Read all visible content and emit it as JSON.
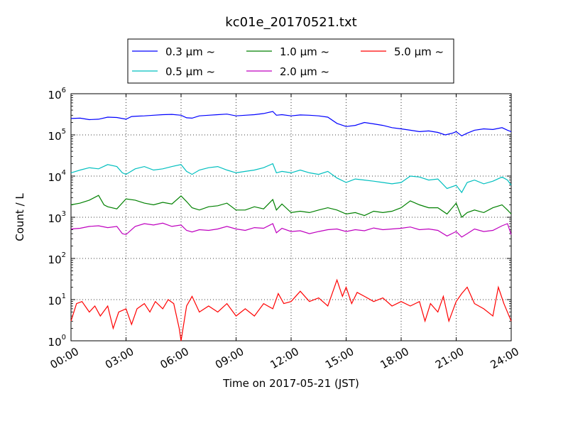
{
  "chart_data": {
    "type": "line",
    "title": "kc01e_20170521.txt",
    "xlabel": "Time on 2017-05-21 (JST)",
    "ylabel": "Count / L",
    "y_scale": "log",
    "ylim": [
      1,
      1000000
    ],
    "y_ticks": [
      {
        "base": "10",
        "exp": "0",
        "value": 1
      },
      {
        "base": "10",
        "exp": "1",
        "value": 10
      },
      {
        "base": "10",
        "exp": "2",
        "value": 100
      },
      {
        "base": "10",
        "exp": "3",
        "value": 1000
      },
      {
        "base": "10",
        "exp": "4",
        "value": 10000
      },
      {
        "base": "10",
        "exp": "5",
        "value": 100000
      },
      {
        "base": "10",
        "exp": "6",
        "value": 1000000
      }
    ],
    "x_ticks": [
      "00:00",
      "03:00",
      "06:00",
      "09:00",
      "12:00",
      "15:00",
      "18:00",
      "21:00",
      "24:00"
    ],
    "xlim": [
      "00:00",
      "24:00"
    ],
    "grid": true,
    "legend_placement": "top-center, above plot",
    "series": [
      {
        "name": "0.3 µm ~",
        "color": "#0000ff",
        "values": [
          [
            0.0,
            250000
          ],
          [
            0.5,
            255000
          ],
          [
            1.0,
            235000
          ],
          [
            1.5,
            240000
          ],
          [
            2.0,
            270000
          ],
          [
            2.5,
            265000
          ],
          [
            3.0,
            240000
          ],
          [
            3.3,
            280000
          ],
          [
            3.6,
            285000
          ],
          [
            4.0,
            290000
          ],
          [
            4.5,
            300000
          ],
          [
            5.0,
            310000
          ],
          [
            5.5,
            315000
          ],
          [
            6.0,
            300000
          ],
          [
            6.3,
            260000
          ],
          [
            6.6,
            255000
          ],
          [
            7.0,
            290000
          ],
          [
            7.5,
            300000
          ],
          [
            8.0,
            310000
          ],
          [
            8.5,
            320000
          ],
          [
            9.0,
            290000
          ],
          [
            9.5,
            300000
          ],
          [
            10.0,
            310000
          ],
          [
            10.5,
            330000
          ],
          [
            11.0,
            370000
          ],
          [
            11.2,
            300000
          ],
          [
            11.5,
            310000
          ],
          [
            12.0,
            290000
          ],
          [
            12.5,
            305000
          ],
          [
            13.0,
            300000
          ],
          [
            13.5,
            290000
          ],
          [
            14.0,
            270000
          ],
          [
            14.5,
            190000
          ],
          [
            15.0,
            160000
          ],
          [
            15.5,
            170000
          ],
          [
            16.0,
            200000
          ],
          [
            16.5,
            185000
          ],
          [
            17.0,
            170000
          ],
          [
            17.5,
            150000
          ],
          [
            18.0,
            140000
          ],
          [
            18.5,
            130000
          ],
          [
            19.0,
            120000
          ],
          [
            19.5,
            125000
          ],
          [
            20.0,
            115000
          ],
          [
            20.4,
            100000
          ],
          [
            20.8,
            110000
          ],
          [
            21.0,
            120000
          ],
          [
            21.3,
            95000
          ],
          [
            21.6,
            110000
          ],
          [
            22.0,
            130000
          ],
          [
            22.5,
            140000
          ],
          [
            23.0,
            135000
          ],
          [
            23.5,
            150000
          ],
          [
            23.8,
            130000
          ],
          [
            24.0,
            120000
          ]
        ]
      },
      {
        "name": "0.5 µm ~",
        "color": "#00bfbf",
        "values": [
          [
            0.0,
            12000
          ],
          [
            0.5,
            14000
          ],
          [
            1.0,
            16000
          ],
          [
            1.5,
            15000
          ],
          [
            2.0,
            19000
          ],
          [
            2.5,
            17000
          ],
          [
            2.8,
            12000
          ],
          [
            3.0,
            11000
          ],
          [
            3.5,
            15000
          ],
          [
            4.0,
            17000
          ],
          [
            4.5,
            14000
          ],
          [
            5.0,
            15000
          ],
          [
            5.5,
            17000
          ],
          [
            6.0,
            19000
          ],
          [
            6.3,
            13000
          ],
          [
            6.6,
            11000
          ],
          [
            7.0,
            14000
          ],
          [
            7.5,
            16000
          ],
          [
            8.0,
            17000
          ],
          [
            8.5,
            14000
          ],
          [
            9.0,
            12000
          ],
          [
            9.5,
            13000
          ],
          [
            10.0,
            14000
          ],
          [
            10.5,
            16000
          ],
          [
            11.0,
            20000
          ],
          [
            11.2,
            12000
          ],
          [
            11.5,
            13000
          ],
          [
            12.0,
            12000
          ],
          [
            12.5,
            14000
          ],
          [
            13.0,
            12000
          ],
          [
            13.5,
            11000
          ],
          [
            14.0,
            13000
          ],
          [
            14.5,
            9000
          ],
          [
            15.0,
            7000
          ],
          [
            15.5,
            8500
          ],
          [
            16.0,
            8000
          ],
          [
            16.5,
            7500
          ],
          [
            17.0,
            7000
          ],
          [
            17.5,
            6500
          ],
          [
            18.0,
            7000
          ],
          [
            18.5,
            10000
          ],
          [
            19.0,
            9500
          ],
          [
            19.5,
            8000
          ],
          [
            20.0,
            8500
          ],
          [
            20.5,
            5000
          ],
          [
            21.0,
            6000
          ],
          [
            21.3,
            4000
          ],
          [
            21.6,
            7000
          ],
          [
            22.0,
            8000
          ],
          [
            22.5,
            6500
          ],
          [
            23.0,
            7500
          ],
          [
            23.5,
            9500
          ],
          [
            23.8,
            8000
          ],
          [
            24.0,
            6000
          ]
        ]
      },
      {
        "name": "1.0 µm ~",
        "color": "#008000",
        "values": [
          [
            0.0,
            2000
          ],
          [
            0.5,
            2200
          ],
          [
            1.0,
            2600
          ],
          [
            1.5,
            3400
          ],
          [
            1.8,
            2000
          ],
          [
            2.0,
            1800
          ],
          [
            2.5,
            1600
          ],
          [
            3.0,
            2800
          ],
          [
            3.5,
            2600
          ],
          [
            4.0,
            2200
          ],
          [
            4.5,
            2000
          ],
          [
            5.0,
            2300
          ],
          [
            5.5,
            2100
          ],
          [
            6.0,
            3300
          ],
          [
            6.3,
            2400
          ],
          [
            6.6,
            1700
          ],
          [
            7.0,
            1500
          ],
          [
            7.5,
            1800
          ],
          [
            8.0,
            1900
          ],
          [
            8.5,
            2200
          ],
          [
            9.0,
            1500
          ],
          [
            9.5,
            1500
          ],
          [
            10.0,
            1800
          ],
          [
            10.5,
            1600
          ],
          [
            11.0,
            2700
          ],
          [
            11.2,
            1500
          ],
          [
            11.5,
            2100
          ],
          [
            12.0,
            1300
          ],
          [
            12.5,
            1400
          ],
          [
            13.0,
            1300
          ],
          [
            13.5,
            1500
          ],
          [
            14.0,
            1700
          ],
          [
            14.5,
            1500
          ],
          [
            15.0,
            1200
          ],
          [
            15.5,
            1300
          ],
          [
            16.0,
            1100
          ],
          [
            16.5,
            1400
          ],
          [
            17.0,
            1300
          ],
          [
            17.5,
            1400
          ],
          [
            18.0,
            1700
          ],
          [
            18.5,
            2500
          ],
          [
            19.0,
            2000
          ],
          [
            19.5,
            1700
          ],
          [
            20.0,
            1700
          ],
          [
            20.5,
            1200
          ],
          [
            21.0,
            2200
          ],
          [
            21.3,
            1000
          ],
          [
            21.6,
            1300
          ],
          [
            22.0,
            1500
          ],
          [
            22.5,
            1300
          ],
          [
            23.0,
            1700
          ],
          [
            23.5,
            2000
          ],
          [
            23.8,
            1500
          ],
          [
            24.0,
            1200
          ]
        ]
      },
      {
        "name": "2.0 µm ~",
        "color": "#bf00bf",
        "values": [
          [
            0.0,
            520
          ],
          [
            0.5,
            540
          ],
          [
            1.0,
            600
          ],
          [
            1.5,
            620
          ],
          [
            2.0,
            560
          ],
          [
            2.5,
            600
          ],
          [
            2.8,
            400
          ],
          [
            3.0,
            380
          ],
          [
            3.5,
            600
          ],
          [
            4.0,
            700
          ],
          [
            4.5,
            650
          ],
          [
            5.0,
            720
          ],
          [
            5.5,
            600
          ],
          [
            6.0,
            650
          ],
          [
            6.3,
            480
          ],
          [
            6.6,
            440
          ],
          [
            7.0,
            500
          ],
          [
            7.5,
            480
          ],
          [
            8.0,
            520
          ],
          [
            8.5,
            600
          ],
          [
            9.0,
            520
          ],
          [
            9.5,
            480
          ],
          [
            10.0,
            560
          ],
          [
            10.5,
            540
          ],
          [
            11.0,
            700
          ],
          [
            11.2,
            420
          ],
          [
            11.5,
            540
          ],
          [
            12.0,
            450
          ],
          [
            12.5,
            470
          ],
          [
            13.0,
            400
          ],
          [
            13.5,
            450
          ],
          [
            14.0,
            500
          ],
          [
            14.5,
            520
          ],
          [
            15.0,
            450
          ],
          [
            15.5,
            500
          ],
          [
            16.0,
            470
          ],
          [
            16.5,
            550
          ],
          [
            17.0,
            500
          ],
          [
            17.5,
            520
          ],
          [
            18.0,
            540
          ],
          [
            18.5,
            580
          ],
          [
            19.0,
            500
          ],
          [
            19.5,
            520
          ],
          [
            20.0,
            480
          ],
          [
            20.5,
            350
          ],
          [
            21.0,
            450
          ],
          [
            21.3,
            330
          ],
          [
            21.6,
            400
          ],
          [
            22.0,
            520
          ],
          [
            22.5,
            450
          ],
          [
            23.0,
            480
          ],
          [
            23.5,
            620
          ],
          [
            23.8,
            700
          ],
          [
            24.0,
            380
          ]
        ]
      },
      {
        "name": "5.0 µm ~",
        "color": "#ff0000",
        "values": [
          [
            0.0,
            3
          ],
          [
            0.3,
            8
          ],
          [
            0.6,
            9
          ],
          [
            1.0,
            5
          ],
          [
            1.3,
            7
          ],
          [
            1.6,
            4
          ],
          [
            2.0,
            7
          ],
          [
            2.3,
            2
          ],
          [
            2.6,
            5
          ],
          [
            3.0,
            6
          ],
          [
            3.3,
            2.5
          ],
          [
            3.6,
            6
          ],
          [
            4.0,
            8
          ],
          [
            4.3,
            5
          ],
          [
            4.6,
            9
          ],
          [
            5.0,
            6
          ],
          [
            5.3,
            10
          ],
          [
            5.6,
            8
          ],
          [
            5.9,
            2
          ],
          [
            6.0,
            1
          ],
          [
            6.3,
            7
          ],
          [
            6.6,
            12
          ],
          [
            7.0,
            5
          ],
          [
            7.5,
            7
          ],
          [
            8.0,
            5
          ],
          [
            8.5,
            8
          ],
          [
            9.0,
            4
          ],
          [
            9.5,
            6
          ],
          [
            10.0,
            4
          ],
          [
            10.5,
            8
          ],
          [
            11.0,
            6
          ],
          [
            11.3,
            14
          ],
          [
            11.6,
            8
          ],
          [
            12.0,
            9
          ],
          [
            12.5,
            16
          ],
          [
            13.0,
            9
          ],
          [
            13.5,
            11
          ],
          [
            14.0,
            7
          ],
          [
            14.5,
            30
          ],
          [
            14.8,
            12
          ],
          [
            15.0,
            20
          ],
          [
            15.3,
            8
          ],
          [
            15.6,
            15
          ],
          [
            16.0,
            12
          ],
          [
            16.5,
            9
          ],
          [
            17.0,
            11
          ],
          [
            17.5,
            7
          ],
          [
            18.0,
            9
          ],
          [
            18.5,
            7
          ],
          [
            19.0,
            9
          ],
          [
            19.3,
            3
          ],
          [
            19.6,
            8
          ],
          [
            20.0,
            5
          ],
          [
            20.3,
            12
          ],
          [
            20.6,
            3
          ],
          [
            21.0,
            9
          ],
          [
            21.3,
            14
          ],
          [
            21.6,
            20
          ],
          [
            22.0,
            8
          ],
          [
            22.5,
            6
          ],
          [
            23.0,
            4
          ],
          [
            23.3,
            20
          ],
          [
            23.6,
            8
          ],
          [
            24.0,
            3
          ]
        ]
      }
    ]
  }
}
